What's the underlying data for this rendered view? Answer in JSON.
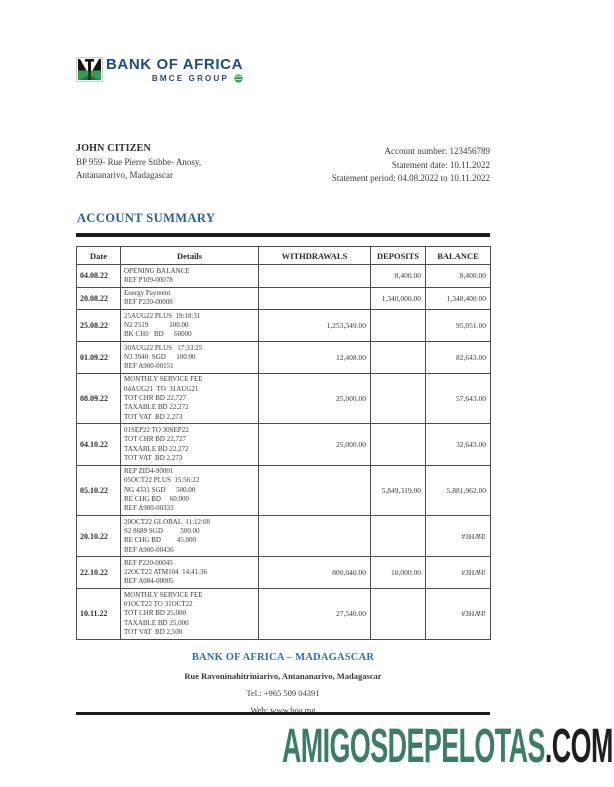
{
  "logo": {
    "bank_name": "BANK OF AFRICA",
    "group_name": "BMCE GROUP",
    "brand_navy": "#1c4c85",
    "brand_green": "#2f9e4d"
  },
  "account_holder": {
    "name": "JOHN CITIZEN",
    "address_line1": "BP 959- Rue Pierre Stibbe- Anosy,",
    "address_line2": "Antananarivo, Madagascar"
  },
  "statement_info": {
    "account_number": "Account number: 123456789",
    "statement_date": "Statement date: 10.11.2022",
    "statement_period": "Statement period: 04.08.2022 to 10.11.2022"
  },
  "summary": {
    "title": "ACCOUNT SUMMARY"
  },
  "table": {
    "headers": [
      "Date",
      "Details",
      "WITHDRAWALS",
      "DEPOSITS",
      "BALANCE"
    ],
    "rows": [
      {
        "date": "04.08.22",
        "details": [
          "OPENING BALANCE",
          "REF P109-00078"
        ],
        "withdrawals": "",
        "deposits": "8,400.00",
        "balance": "8,400.00"
      },
      {
        "date": "20.08.22",
        "details": [
          "Energy Payment",
          "REF P220-00008"
        ],
        "withdrawals": "",
        "deposits": "1,340,000.00",
        "balance": "1,348,400.00"
      },
      {
        "date": "25.08.22",
        "details": [
          "25AUG22 PLUS  19:18:31",
          "N2 2519            100.00",
          "BK CH0   BD      60000"
        ],
        "withdrawals": "1,253,349.00",
        "deposits": "",
        "balance": "95,051.00"
      },
      {
        "date": "01.09.22",
        "details": [
          "30AUG22 PLUS   17:33:25",
          "N3 3940  SGD      100.00",
          "REF A900-00151"
        ],
        "withdrawals": "12,408.00",
        "deposits": "",
        "balance": "82,643.00"
      },
      {
        "date": "08.09.22",
        "details": [
          "MONTHLY SERVICE FEE",
          "04AUG21  TO  31AUG21",
          "TOT CHR BD 22,727",
          "TAXABLE BD 22,272",
          "TOT VAT  BD 2,273"
        ],
        "withdrawals": "25,000.00",
        "deposits": "",
        "balance": "57,643.00"
      },
      {
        "date": "04.10.22",
        "details": [
          "01SEP22 TO 30SEP22",
          "TOT CHR BD 22,727",
          "TAXABLE BD 22,272",
          "TOT VAT  BD 2,273"
        ],
        "withdrawals": "25,000.00",
        "deposits": "",
        "balance": "32,643.00"
      },
      {
        "date": "05.10.22",
        "details": [
          "REP ZID4-90001",
          "05OCT22 PLUS  15:56:22",
          "NG 4331 SGD      500.00",
          "RE CHG BD     60.000",
          "REF A900-00333"
        ],
        "withdrawals": "",
        "deposits": "5,849,319.00",
        "balance": "5,881,962.00"
      },
      {
        "date": "20.10.22",
        "details": [
          "20OCT22 GLOBAL  11:12:08",
          "S2 8689 SGD          500.00",
          "RE CHG BD         45.000",
          "REF A900-00436"
        ],
        "withdrawals": "",
        "deposits": "",
        "balance": "#ЗНАЧ!"
      },
      {
        "date": "22.10.22",
        "details": [
          "REF P220-00045",
          "22OCT22 ATM104  14:41:36",
          "REF A084-00005"
        ],
        "withdrawals": "800,040.00",
        "deposits": "10,000.00",
        "balance": "#ЗНАЧ!"
      },
      {
        "date": "10.11.22",
        "details": [
          "MONTHLY SERVICE FEE",
          "01OCT22 TO 31OCT22",
          "TOT CHR BD 25,000",
          "TAXABLE BD 25,000",
          "TOT VAT  BD 2,500"
        ],
        "withdrawals": "27,540.00",
        "deposits": "",
        "balance": "#ЗНАЧ!"
      }
    ]
  },
  "footer": {
    "bank_title": "BANK OF AFRICA – MADAGASCAR",
    "address": "Rue Ravoninahitriniarivo, Antananarivo, Madagascar",
    "tel": "Tel.: +965 509 04391",
    "web": "Web: www.boa.mg"
  },
  "watermark": {
    "name": "AMIGOSDEPELOTAS",
    "tld": ".COM",
    "name_color": "#3c7d66",
    "tld_color": "#1e1e1e"
  }
}
